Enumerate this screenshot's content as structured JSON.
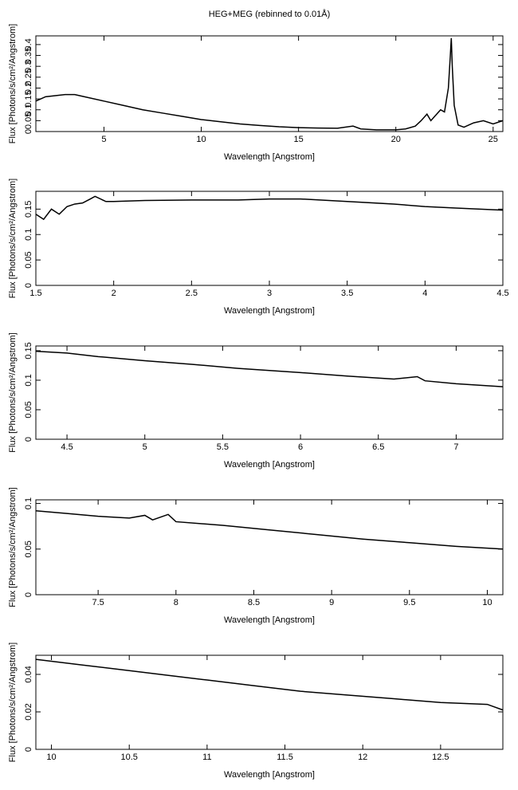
{
  "chart_data": [
    {
      "type": "line",
      "title": "HEG+MEG (rebinned to 0.01Å)",
      "xlabel": "Wavelength [Angstrom]",
      "ylabel": "Flux [Photons/s/cm²/Angstrom]",
      "color": "#000000",
      "xlim": [
        1.5,
        25.5
      ],
      "ylim": [
        0,
        0.44
      ],
      "xticks": [
        5,
        10,
        15,
        20,
        25
      ],
      "yticks": [
        0,
        0.05,
        0.1,
        0.15,
        0.2,
        0.25,
        0.3,
        0.35,
        0.4
      ],
      "x": [
        1.5,
        2,
        3,
        3.5,
        4,
        5,
        6,
        7,
        8,
        9,
        10,
        11,
        12,
        13,
        14,
        15,
        16,
        17,
        17.8,
        18.2,
        19,
        20,
        20.5,
        21,
        21.3,
        21.6,
        21.8,
        22,
        22.3,
        22.5,
        22.7,
        22.8,
        22.85,
        22.9,
        23.0,
        23.2,
        23.5,
        24,
        24.5,
        25,
        25.5
      ],
      "values": [
        0.14,
        0.16,
        0.17,
        0.17,
        0.16,
        0.14,
        0.12,
        0.1,
        0.085,
        0.07,
        0.055,
        0.045,
        0.035,
        0.028,
        0.022,
        0.018,
        0.016,
        0.015,
        0.025,
        0.012,
        0.008,
        0.008,
        0.012,
        0.025,
        0.05,
        0.08,
        0.05,
        0.07,
        0.1,
        0.09,
        0.2,
        0.35,
        0.43,
        0.3,
        0.12,
        0.03,
        0.02,
        0.04,
        0.05,
        0.035,
        0.05
      ]
    },
    {
      "type": "line",
      "xlabel": "Wavelength [Angstrom]",
      "ylabel": "Flux [Photons/s/cm²/Angstrom]",
      "color": "#000000",
      "xlim": [
        1.5,
        4.5
      ],
      "ylim": [
        0,
        0.185
      ],
      "xticks": [
        1.5,
        2,
        2.5,
        3,
        3.5,
        4,
        4.5
      ],
      "yticks": [
        0,
        0.05,
        0.1,
        0.15
      ],
      "x": [
        1.5,
        1.55,
        1.6,
        1.65,
        1.7,
        1.75,
        1.8,
        1.85,
        1.88,
        1.95,
        2.0,
        2.2,
        2.5,
        2.8,
        3.0,
        3.2,
        3.5,
        3.8,
        4.0,
        4.2,
        4.5
      ],
      "values": [
        0.14,
        0.13,
        0.15,
        0.14,
        0.155,
        0.16,
        0.162,
        0.17,
        0.175,
        0.165,
        0.165,
        0.167,
        0.168,
        0.168,
        0.17,
        0.17,
        0.165,
        0.16,
        0.155,
        0.152,
        0.148
      ]
    },
    {
      "type": "line",
      "xlabel": "Wavelength [Angstrom]",
      "ylabel": "Flux [Photons/s/cm²/Angstrom]",
      "color": "#000000",
      "xlim": [
        4.3,
        7.3
      ],
      "ylim": [
        0,
        0.158
      ],
      "xticks": [
        4.5,
        5,
        5.5,
        6,
        6.5,
        7
      ],
      "yticks": [
        0,
        0.05,
        0.1,
        0.15
      ],
      "x": [
        4.3,
        4.5,
        4.7,
        5,
        5.3,
        5.6,
        6,
        6.3,
        6.6,
        6.75,
        6.8,
        7,
        7.3
      ],
      "values": [
        0.149,
        0.146,
        0.14,
        0.133,
        0.127,
        0.12,
        0.113,
        0.107,
        0.102,
        0.106,
        0.099,
        0.094,
        0.089
      ]
    },
    {
      "type": "line",
      "xlabel": "Wavelength [Angstrom]",
      "ylabel": "Flux [Photons/s/cm²/Angstrom]",
      "color": "#000000",
      "xlim": [
        7.1,
        10.1
      ],
      "ylim": [
        0,
        0.104
      ],
      "xticks": [
        7.5,
        8,
        8.5,
        9,
        9.5,
        10
      ],
      "yticks": [
        0,
        0.05,
        0.1
      ],
      "x": [
        7.1,
        7.3,
        7.5,
        7.7,
        7.8,
        7.85,
        7.95,
        8,
        8.3,
        8.6,
        8.9,
        9.2,
        9.5,
        9.8,
        10.1
      ],
      "values": [
        0.092,
        0.089,
        0.086,
        0.084,
        0.087,
        0.082,
        0.088,
        0.08,
        0.076,
        0.071,
        0.066,
        0.061,
        0.057,
        0.053,
        0.05
      ]
    },
    {
      "type": "line",
      "xlabel": "Wavelength [Angstrom]",
      "ylabel": "Flux [Photons/s/cm²/Angstrom]",
      "color": "#000000",
      "xlim": [
        9.9,
        12.9
      ],
      "ylim": [
        0,
        0.0502
      ],
      "xticks": [
        10,
        10.5,
        11,
        11.5,
        12,
        12.5
      ],
      "yticks": [
        0,
        0.02,
        0.04
      ],
      "x": [
        9.9,
        10.2,
        10.5,
        10.8,
        11,
        11.3,
        11.6,
        11.9,
        12.2,
        12.5,
        12.8,
        12.9
      ],
      "values": [
        0.048,
        0.045,
        0.042,
        0.039,
        0.037,
        0.034,
        0.031,
        0.029,
        0.027,
        0.025,
        0.024,
        0.021
      ]
    }
  ]
}
